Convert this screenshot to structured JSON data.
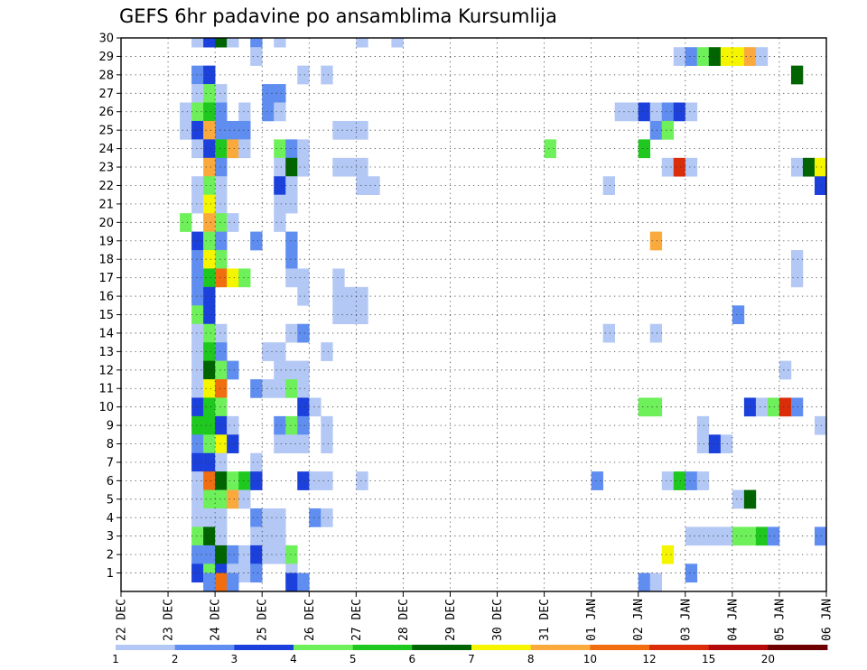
{
  "chart_data": {
    "type": "heatmap",
    "title": "GEFS 6hr padavine po ansamblima Kursumlija",
    "xlabel": "",
    "ylabel": "",
    "x_ticks": [
      "22 DEC",
      "23 DEC",
      "24 DEC",
      "25 DEC",
      "26 DEC",
      "27 DEC",
      "28 DEC",
      "29 DEC",
      "30 DEC",
      "31 DEC",
      "01 JAN",
      "02 JAN",
      "03 JAN",
      "04 JAN",
      "05 JAN",
      "06 JAN"
    ],
    "y_ticks": [
      "1",
      "2",
      "3",
      "4",
      "5",
      "6",
      "7",
      "8",
      "9",
      "10",
      "11",
      "12",
      "13",
      "14",
      "15",
      "16",
      "17",
      "18",
      "19",
      "20",
      "21",
      "22",
      "23",
      "24",
      "25",
      "26",
      "27",
      "28",
      "29",
      "30"
    ],
    "xlim_steps": [
      0,
      60
    ],
    "steps_per_day": 4,
    "ylim": [
      0,
      30
    ],
    "grid": true,
    "legend_position": "bottom",
    "color_scale": {
      "levels": [
        "1",
        "2",
        "3",
        "4",
        "5",
        "6",
        "7",
        "8",
        "10",
        "12",
        "15",
        "20"
      ],
      "colors": [
        "#b4c8f5",
        "#5f8ef0",
        "#1c40dc",
        "#6ef05a",
        "#1ec81e",
        "#006400",
        "#f5f500",
        "#faaa3c",
        "#f06e0f",
        "#dc2d0a",
        "#b40a0a",
        "#6e0000"
      ]
    },
    "cells": [
      {
        "m": 30,
        "t": [
          [
            6.5,
            0
          ],
          [
            7.5,
            2
          ],
          [
            8.5,
            5
          ],
          [
            9.5,
            0
          ],
          [
            11.5,
            1
          ],
          [
            13.5,
            0
          ],
          [
            20.5,
            0
          ],
          [
            23.5,
            0
          ]
        ]
      },
      {
        "m": 29,
        "t": [
          [
            11.5,
            0
          ],
          [
            47.5,
            0
          ],
          [
            48.5,
            1
          ],
          [
            49.5,
            3
          ],
          [
            50.5,
            5
          ],
          [
            51.5,
            6
          ],
          [
            52.5,
            6
          ],
          [
            53.5,
            7
          ],
          [
            54.5,
            0
          ]
        ]
      },
      {
        "m": 28,
        "t": [
          [
            6.5,
            1
          ],
          [
            7.5,
            2
          ],
          [
            15.5,
            0
          ],
          [
            17.5,
            0
          ],
          [
            57.5,
            5
          ]
        ]
      },
      {
        "m": 27,
        "t": [
          [
            6.5,
            0
          ],
          [
            7.5,
            3
          ],
          [
            8.5,
            0
          ],
          [
            12.5,
            1
          ],
          [
            13.5,
            1
          ]
        ]
      },
      {
        "m": 26,
        "t": [
          [
            5.5,
            0
          ],
          [
            6.5,
            3
          ],
          [
            7.5,
            4
          ],
          [
            8.5,
            1
          ],
          [
            10.5,
            0
          ],
          [
            12.5,
            1
          ],
          [
            13.5,
            0
          ],
          [
            42.5,
            0
          ],
          [
            43.5,
            0
          ],
          [
            44.5,
            2
          ],
          [
            45.5,
            0
          ],
          [
            46.5,
            1
          ],
          [
            47.5,
            2
          ],
          [
            48.5,
            0
          ]
        ]
      },
      {
        "m": 25,
        "t": [
          [
            5.5,
            0
          ],
          [
            6.5,
            2
          ],
          [
            7.5,
            7
          ],
          [
            8.5,
            1
          ],
          [
            9.5,
            1
          ],
          [
            10.5,
            1
          ],
          [
            18.5,
            0
          ],
          [
            19.5,
            0
          ],
          [
            20.5,
            0
          ],
          [
            45.5,
            1
          ],
          [
            46.5,
            3
          ]
        ]
      },
      {
        "m": 24,
        "t": [
          [
            6.5,
            0
          ],
          [
            7.5,
            2
          ],
          [
            8.5,
            4
          ],
          [
            9.5,
            7
          ],
          [
            10.5,
            0
          ],
          [
            13.5,
            3
          ],
          [
            14.5,
            1
          ],
          [
            15.5,
            0
          ],
          [
            36.5,
            3
          ],
          [
            44.5,
            4
          ]
        ]
      },
      {
        "m": 23,
        "t": [
          [
            7.5,
            7
          ],
          [
            8.5,
            1
          ],
          [
            13.5,
            0
          ],
          [
            14.5,
            5
          ],
          [
            15.5,
            0
          ],
          [
            18.5,
            0
          ],
          [
            19.5,
            0
          ],
          [
            20.5,
            0
          ],
          [
            46.5,
            0
          ],
          [
            47.5,
            9
          ],
          [
            48.5,
            0
          ],
          [
            57.5,
            0
          ],
          [
            58.5,
            5
          ],
          [
            59.5,
            6
          ]
        ]
      },
      {
        "m": 22,
        "t": [
          [
            6.5,
            0
          ],
          [
            7.5,
            3
          ],
          [
            8.5,
            0
          ],
          [
            13.5,
            2
          ],
          [
            14.5,
            0
          ],
          [
            20.5,
            0
          ],
          [
            21.5,
            0
          ],
          [
            41.5,
            0
          ],
          [
            59.5,
            2
          ]
        ]
      },
      {
        "m": 21,
        "t": [
          [
            6.5,
            0
          ],
          [
            7.5,
            6
          ],
          [
            8.5,
            0
          ],
          [
            13.5,
            0
          ],
          [
            14.5,
            0
          ]
        ]
      },
      {
        "m": 20,
        "t": [
          [
            5.5,
            3
          ],
          [
            7.5,
            7
          ],
          [
            8.5,
            3
          ],
          [
            9.5,
            0
          ],
          [
            13.5,
            0
          ]
        ]
      },
      {
        "m": 19,
        "t": [
          [
            6.5,
            2
          ],
          [
            7.5,
            3
          ],
          [
            8.5,
            1
          ],
          [
            11.5,
            1
          ],
          [
            14.5,
            1
          ],
          [
            45.5,
            7
          ]
        ]
      },
      {
        "m": 18,
        "t": [
          [
            6.5,
            1
          ],
          [
            7.5,
            6
          ],
          [
            8.5,
            3
          ],
          [
            14.5,
            1
          ],
          [
            57.5,
            0
          ]
        ]
      },
      {
        "m": 17,
        "t": [
          [
            6.5,
            1
          ],
          [
            7.5,
            4
          ],
          [
            8.5,
            8
          ],
          [
            9.5,
            6
          ],
          [
            10.5,
            3
          ],
          [
            14.5,
            0
          ],
          [
            15.5,
            0
          ],
          [
            18.5,
            0
          ],
          [
            57.5,
            0
          ]
        ]
      },
      {
        "m": 16,
        "t": [
          [
            6.5,
            1
          ],
          [
            7.5,
            2
          ],
          [
            15.5,
            0
          ],
          [
            18.5,
            0
          ],
          [
            19.5,
            0
          ],
          [
            20.5,
            0
          ]
        ]
      },
      {
        "m": 15,
        "t": [
          [
            6.5,
            3
          ],
          [
            7.5,
            2
          ],
          [
            18.5,
            0
          ],
          [
            19.5,
            0
          ],
          [
            20.5,
            0
          ],
          [
            52.5,
            1
          ]
        ]
      },
      {
        "m": 14,
        "t": [
          [
            6.5,
            0
          ],
          [
            7.5,
            3
          ],
          [
            8.5,
            0
          ],
          [
            14.5,
            0
          ],
          [
            15.5,
            1
          ],
          [
            41.5,
            0
          ],
          [
            45.5,
            0
          ]
        ]
      },
      {
        "m": 13,
        "t": [
          [
            6.5,
            0
          ],
          [
            7.5,
            4
          ],
          [
            8.5,
            1
          ],
          [
            12.5,
            0
          ],
          [
            13.5,
            0
          ],
          [
            17.5,
            0
          ]
        ]
      },
      {
        "m": 12,
        "t": [
          [
            6.5,
            0
          ],
          [
            7.5,
            5
          ],
          [
            8.5,
            3
          ],
          [
            9.5,
            1
          ],
          [
            13.5,
            0
          ],
          [
            14.5,
            0
          ],
          [
            15.5,
            0
          ],
          [
            56.5,
            0
          ]
        ]
      },
      {
        "m": 11,
        "t": [
          [
            6.5,
            0
          ],
          [
            7.5,
            6
          ],
          [
            8.5,
            8
          ],
          [
            11.5,
            1
          ],
          [
            12.5,
            0
          ],
          [
            13.5,
            0
          ],
          [
            14.5,
            3
          ],
          [
            15.5,
            0
          ]
        ]
      },
      {
        "m": 10,
        "t": [
          [
            6.5,
            2
          ],
          [
            7.5,
            4
          ],
          [
            8.5,
            3
          ],
          [
            15.5,
            2
          ],
          [
            16.5,
            0
          ],
          [
            44.5,
            3
          ],
          [
            45.5,
            3
          ],
          [
            53.5,
            2
          ],
          [
            54.5,
            0
          ],
          [
            55.5,
            3
          ],
          [
            56.5,
            9
          ],
          [
            57.5,
            1
          ]
        ]
      },
      {
        "m": 9,
        "t": [
          [
            6.5,
            4
          ],
          [
            7.5,
            4
          ],
          [
            8.5,
            2
          ],
          [
            9.5,
            0
          ],
          [
            13.5,
            1
          ],
          [
            14.5,
            3
          ],
          [
            15.5,
            1
          ],
          [
            17.5,
            0
          ],
          [
            49.5,
            0
          ],
          [
            59.5,
            0
          ]
        ]
      },
      {
        "m": 8,
        "t": [
          [
            6.5,
            1
          ],
          [
            7.5,
            3
          ],
          [
            8.5,
            6
          ],
          [
            9.5,
            2
          ],
          [
            13.5,
            0
          ],
          [
            14.5,
            0
          ],
          [
            15.5,
            0
          ],
          [
            17.5,
            0
          ],
          [
            49.5,
            0
          ],
          [
            50.5,
            2
          ],
          [
            51.5,
            0
          ]
        ]
      },
      {
        "m": 7,
        "t": [
          [
            6.5,
            2
          ],
          [
            7.5,
            2
          ],
          [
            8.5,
            0
          ],
          [
            11.5,
            0
          ]
        ]
      },
      {
        "m": 6,
        "t": [
          [
            6.5,
            0
          ],
          [
            7.5,
            8
          ],
          [
            8.5,
            5
          ],
          [
            9.5,
            3
          ],
          [
            10.5,
            4
          ],
          [
            11.5,
            2
          ],
          [
            15.5,
            2
          ],
          [
            16.5,
            0
          ],
          [
            17.5,
            0
          ],
          [
            20.5,
            0
          ],
          [
            40.5,
            1
          ],
          [
            46.5,
            0
          ],
          [
            47.5,
            4
          ],
          [
            48.5,
            1
          ],
          [
            49.5,
            0
          ]
        ]
      },
      {
        "m": 5,
        "t": [
          [
            6.5,
            0
          ],
          [
            7.5,
            3
          ],
          [
            8.5,
            3
          ],
          [
            9.5,
            7
          ],
          [
            10.5,
            0
          ],
          [
            52.5,
            0
          ],
          [
            53.5,
            5
          ]
        ]
      },
      {
        "m": 4,
        "t": [
          [
            6.5,
            0
          ],
          [
            7.5,
            0
          ],
          [
            8.5,
            0
          ],
          [
            11.5,
            1
          ],
          [
            12.5,
            0
          ],
          [
            13.5,
            0
          ],
          [
            16.5,
            1
          ],
          [
            17.5,
            0
          ]
        ]
      },
      {
        "m": 3,
        "t": [
          [
            6.5,
            3
          ],
          [
            7.5,
            5
          ],
          [
            8.5,
            0
          ],
          [
            11.5,
            0
          ],
          [
            12.5,
            0
          ],
          [
            13.5,
            0
          ],
          [
            48.5,
            0
          ],
          [
            49.5,
            0
          ],
          [
            50.5,
            0
          ],
          [
            51.5,
            0
          ],
          [
            52.5,
            3
          ],
          [
            53.5,
            3
          ],
          [
            54.5,
            4
          ],
          [
            55.5,
            1
          ],
          [
            59.5,
            1
          ]
        ]
      },
      {
        "m": 2,
        "t": [
          [
            6.5,
            1
          ],
          [
            7.5,
            1
          ],
          [
            8.5,
            5
          ],
          [
            9.5,
            1
          ],
          [
            10.5,
            0
          ],
          [
            11.5,
            2
          ],
          [
            12.5,
            0
          ],
          [
            13.5,
            0
          ],
          [
            14.5,
            3
          ],
          [
            46.5,
            6
          ]
        ]
      },
      {
        "m": 1,
        "t": [
          [
            6.5,
            2
          ],
          [
            7.5,
            3
          ],
          [
            8.5,
            2
          ],
          [
            9.5,
            0
          ],
          [
            10.5,
            0
          ],
          [
            11.5,
            1
          ],
          [
            14.5,
            0
          ],
          [
            48.5,
            1
          ]
        ]
      },
      {
        "m": 0.5,
        "t": [
          [
            7.5,
            1
          ],
          [
            8.5,
            8
          ],
          [
            9.5,
            1
          ],
          [
            14.5,
            2
          ],
          [
            15.5,
            1
          ],
          [
            44.5,
            1
          ],
          [
            45.5,
            0
          ]
        ]
      }
    ]
  }
}
